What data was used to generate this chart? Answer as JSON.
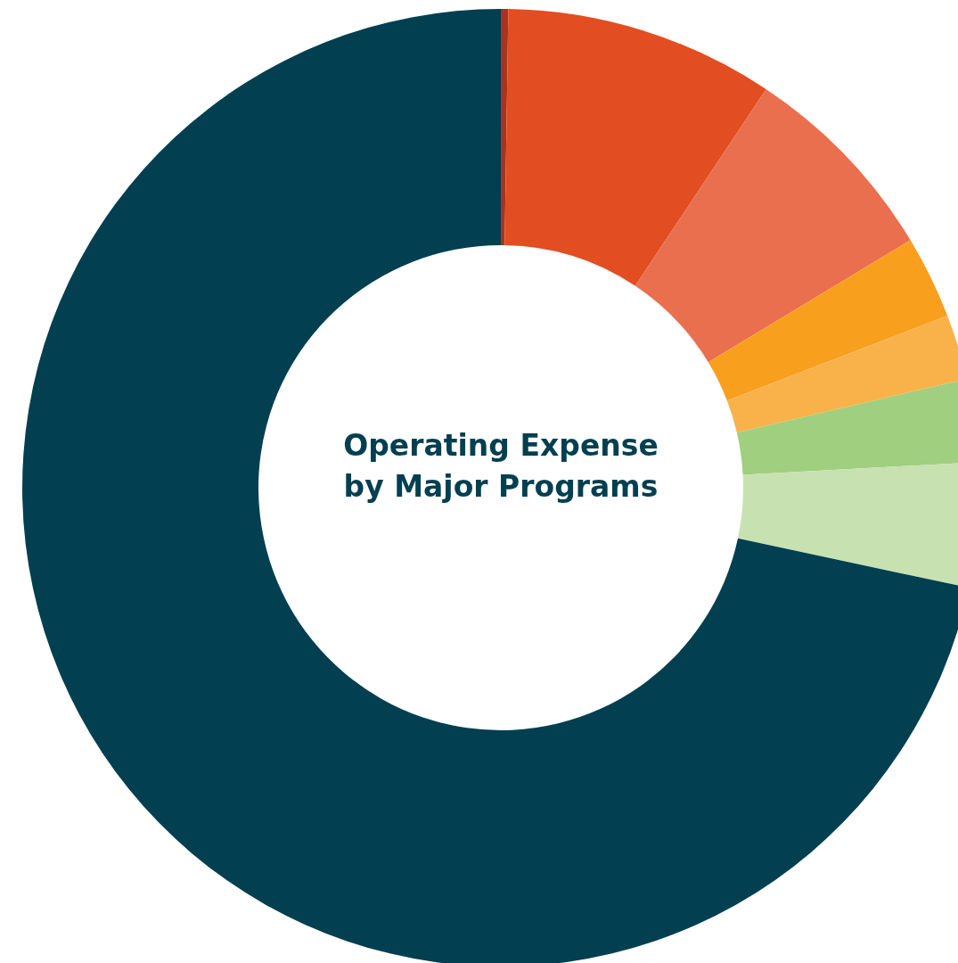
{
  "chart_data": {
    "type": "donut",
    "title": "Operating Expense by Major Programs",
    "categories": [
      null,
      null,
      null,
      null,
      null,
      null,
      null,
      null
    ],
    "values": [
      0.25,
      9.1,
      7,
      2.8,
      2.2,
      2.8,
      4.2,
      71.65
    ],
    "colors": [
      "#a8351b",
      "#e34d22",
      "#ea6f4e",
      "#f89f1e",
      "#f9b24a",
      "#a0cf7f",
      "#c7e2b0",
      "#023f50"
    ]
  }
}
